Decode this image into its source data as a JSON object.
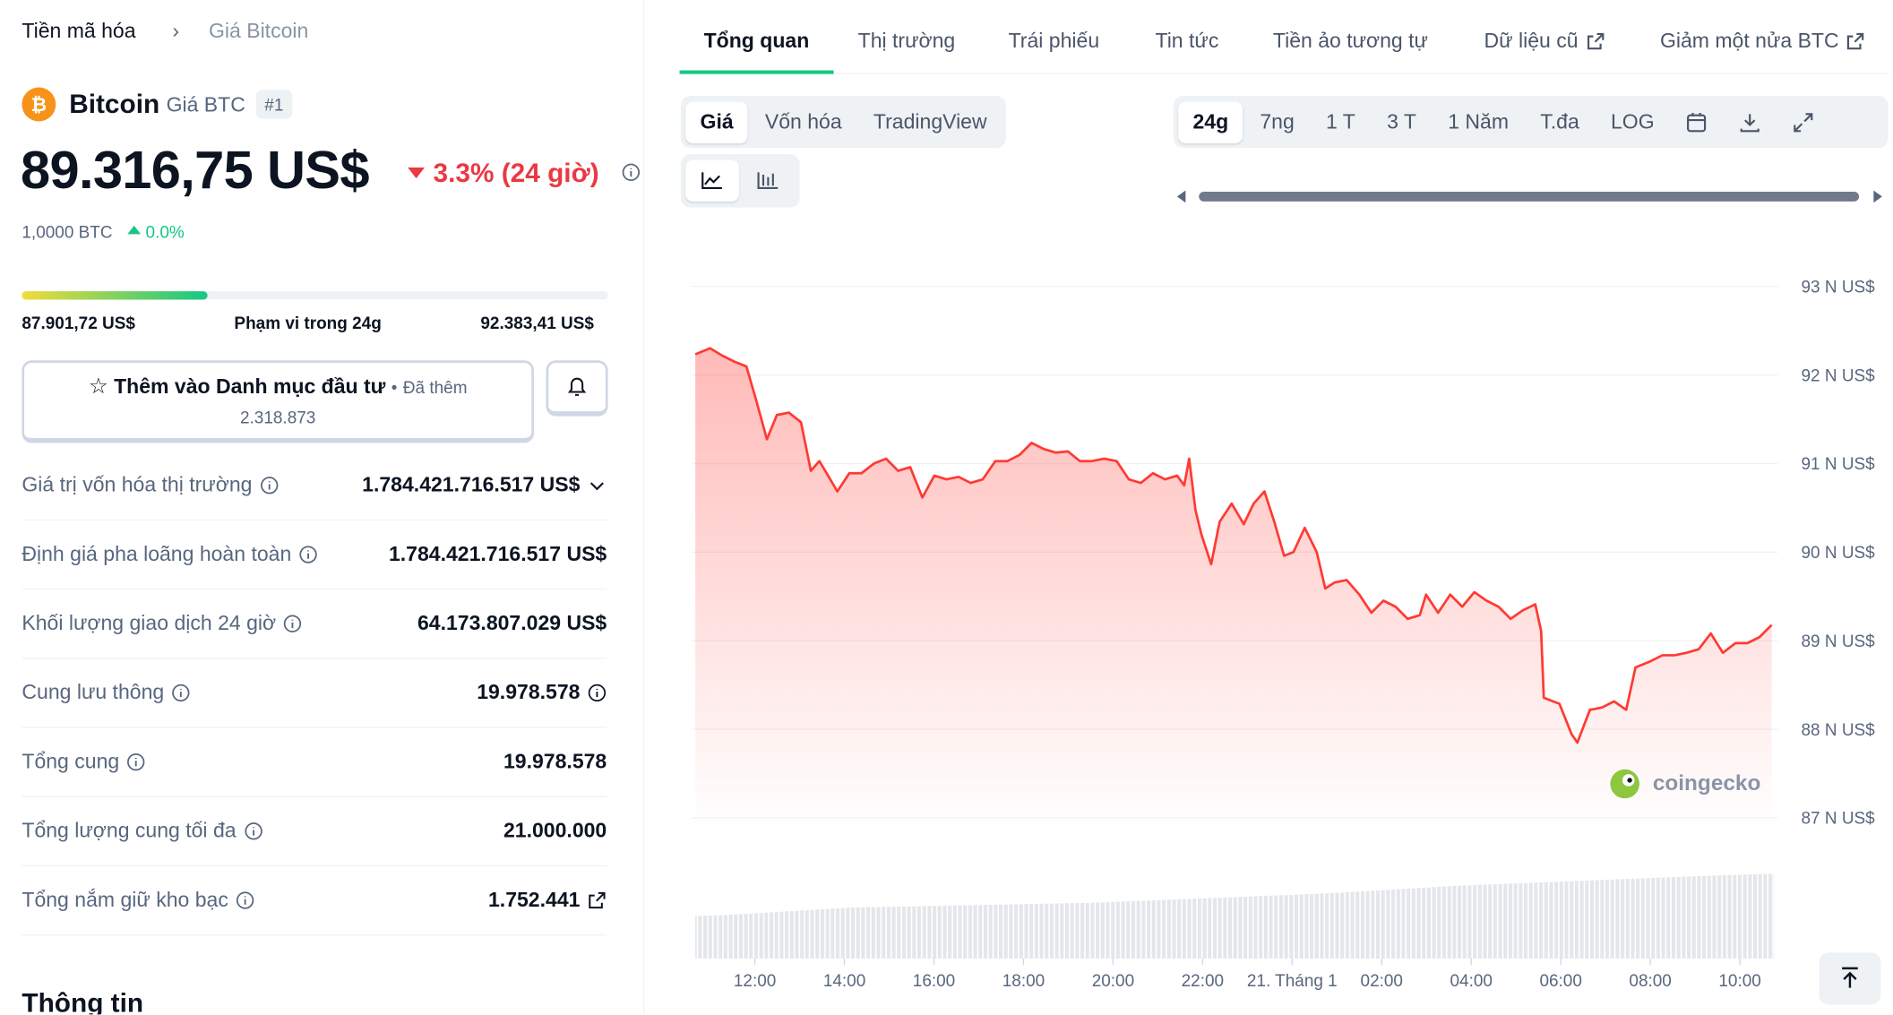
{
  "breadcrumb": [
    "Tiền mã hóa",
    "Giá Bitcoin"
  ],
  "coin": {
    "name": "Bitcoin",
    "symbol_label": "Giá BTC",
    "rank": "#1",
    "price": "89.316,75 US$",
    "change": "3.3% (24 giờ)",
    "btc_price": "1,0000 BTC",
    "btc_change": "0.0%"
  },
  "range": {
    "low": "87.901,72 US$",
    "label": "Phạm vi trong 24g",
    "high": "92.383,41 US$"
  },
  "watchlist": {
    "button": "Thêm vào Danh mục đầu tư",
    "added_label": "Đã thêm",
    "added_count": "2.318.873"
  },
  "stats": [
    {
      "label": "Giá trị vốn hóa thị trường",
      "value": "1.784.421.716.517 US$"
    },
    {
      "label": "Định giá pha loãng hoàn toàn",
      "value": "1.784.421.716.517 US$"
    },
    {
      "label": "Khối lượng giao dịch 24 giờ",
      "value": "64.173.807.029 US$"
    },
    {
      "label": "Cung lưu thông",
      "value": "19.978.578"
    },
    {
      "label": "Tổng cung",
      "value": "19.978.578"
    },
    {
      "label": "Tổng lượng cung tối đa",
      "value": "21.000.000"
    },
    {
      "label": "Tổng nắm giữ kho bạc",
      "value": "1.752.441"
    }
  ],
  "info_heading": "Thông tin",
  "tabs": [
    "Tổng quan",
    "Thị trường",
    "Trái phiếu",
    "Tin tức",
    "Tiền ảo tương tự",
    "Dữ liệu cũ",
    "Giảm một nửa BTC"
  ],
  "price_tabs": [
    "Giá",
    "Vốn hóa",
    "TradingView"
  ],
  "time_tabs": [
    "24g",
    "7ng",
    "1 T",
    "3 T",
    "1 Năm",
    "T.đa",
    "LOG"
  ],
  "watermark": "coingecko",
  "chart_data": {
    "type": "line",
    "color": "#ff3a33",
    "grid": true,
    "xlim": [
      10.67,
      34.71
    ],
    "ylim": [
      87000,
      93000
    ],
    "xticks": [
      {
        "value": 12,
        "label": "12:00"
      },
      {
        "value": 14,
        "label": "14:00"
      },
      {
        "value": 16,
        "label": "16:00"
      },
      {
        "value": 18,
        "label": "18:00"
      },
      {
        "value": 20,
        "label": "20:00"
      },
      {
        "value": 22,
        "label": "22:00"
      },
      {
        "value": 24,
        "label": "21. Tháng 1"
      },
      {
        "value": 26,
        "label": "02:00"
      },
      {
        "value": 28,
        "label": "04:00"
      },
      {
        "value": 30,
        "label": "06:00"
      },
      {
        "value": 32,
        "label": "08:00"
      },
      {
        "value": 34,
        "label": "10:00"
      }
    ],
    "yticks": [
      {
        "value": 87000,
        "label": "87 N US$"
      },
      {
        "value": 88000,
        "label": "88 N US$"
      },
      {
        "value": 89000,
        "label": "89 N US$"
      },
      {
        "value": 90000,
        "label": "90 N US$"
      },
      {
        "value": 91000,
        "label": "91 N US$"
      },
      {
        "value": 92000,
        "label": "92 N US$"
      },
      {
        "value": 93000,
        "label": "93 N US$"
      }
    ],
    "x": [
      10.67,
      11.0,
      11.27,
      11.54,
      11.81,
      12.03,
      12.27,
      12.49,
      12.76,
      13.03,
      13.25,
      13.44,
      13.65,
      13.84,
      14.11,
      14.38,
      14.66,
      14.93,
      15.2,
      15.47,
      15.74,
      16.01,
      16.28,
      16.55,
      16.82,
      17.09,
      17.37,
      17.64,
      17.91,
      18.18,
      18.45,
      18.72,
      18.99,
      19.26,
      19.53,
      19.8,
      20.08,
      20.35,
      20.62,
      20.89,
      21.16,
      21.43,
      21.59,
      21.7,
      21.84,
      21.97,
      22.19,
      22.38,
      22.65,
      22.92,
      23.14,
      23.38,
      23.6,
      23.82,
      24.03,
      24.28,
      24.55,
      24.74,
      24.95,
      25.22,
      25.5,
      25.77,
      26.04,
      26.31,
      26.58,
      26.85,
      26.99,
      27.26,
      27.53,
      27.8,
      28.07,
      28.34,
      28.61,
      28.88,
      29.15,
      29.43,
      29.56,
      29.62,
      29.97,
      30.24,
      30.37,
      30.65,
      30.92,
      31.19,
      31.46,
      31.67,
      32.0,
      32.27,
      32.54,
      32.81,
      33.08,
      33.35,
      33.62,
      33.9,
      34.17,
      34.44,
      34.71
    ],
    "values": [
      92233,
      92301,
      92219,
      92151,
      92096,
      91712,
      91274,
      91548,
      91575,
      91466,
      90918,
      91027,
      90849,
      90685,
      90890,
      90890,
      91000,
      91055,
      90918,
      90959,
      90616,
      90863,
      90822,
      90849,
      90781,
      90822,
      91027,
      91027,
      91096,
      91233,
      91164,
      91123,
      91137,
      91027,
      91027,
      91055,
      91027,
      90822,
      90781,
      90890,
      90822,
      90863,
      90753,
      91055,
      90479,
      90205,
      89863,
      90342,
      90548,
      90315,
      90548,
      90685,
      90342,
      89959,
      90000,
      90274,
      90000,
      89589,
      89657,
      89685,
      89520,
      89315,
      89452,
      89383,
      89246,
      89287,
      89520,
      89315,
      89520,
      89383,
      89548,
      89452,
      89383,
      89246,
      89342,
      89411,
      89109,
      88356,
      88287,
      87945,
      87849,
      88219,
      88246,
      88315,
      88219,
      88698,
      88767,
      88835,
      88835,
      88863,
      88904,
      89082,
      88863,
      88972,
      88972,
      89041,
      89178
    ]
  }
}
